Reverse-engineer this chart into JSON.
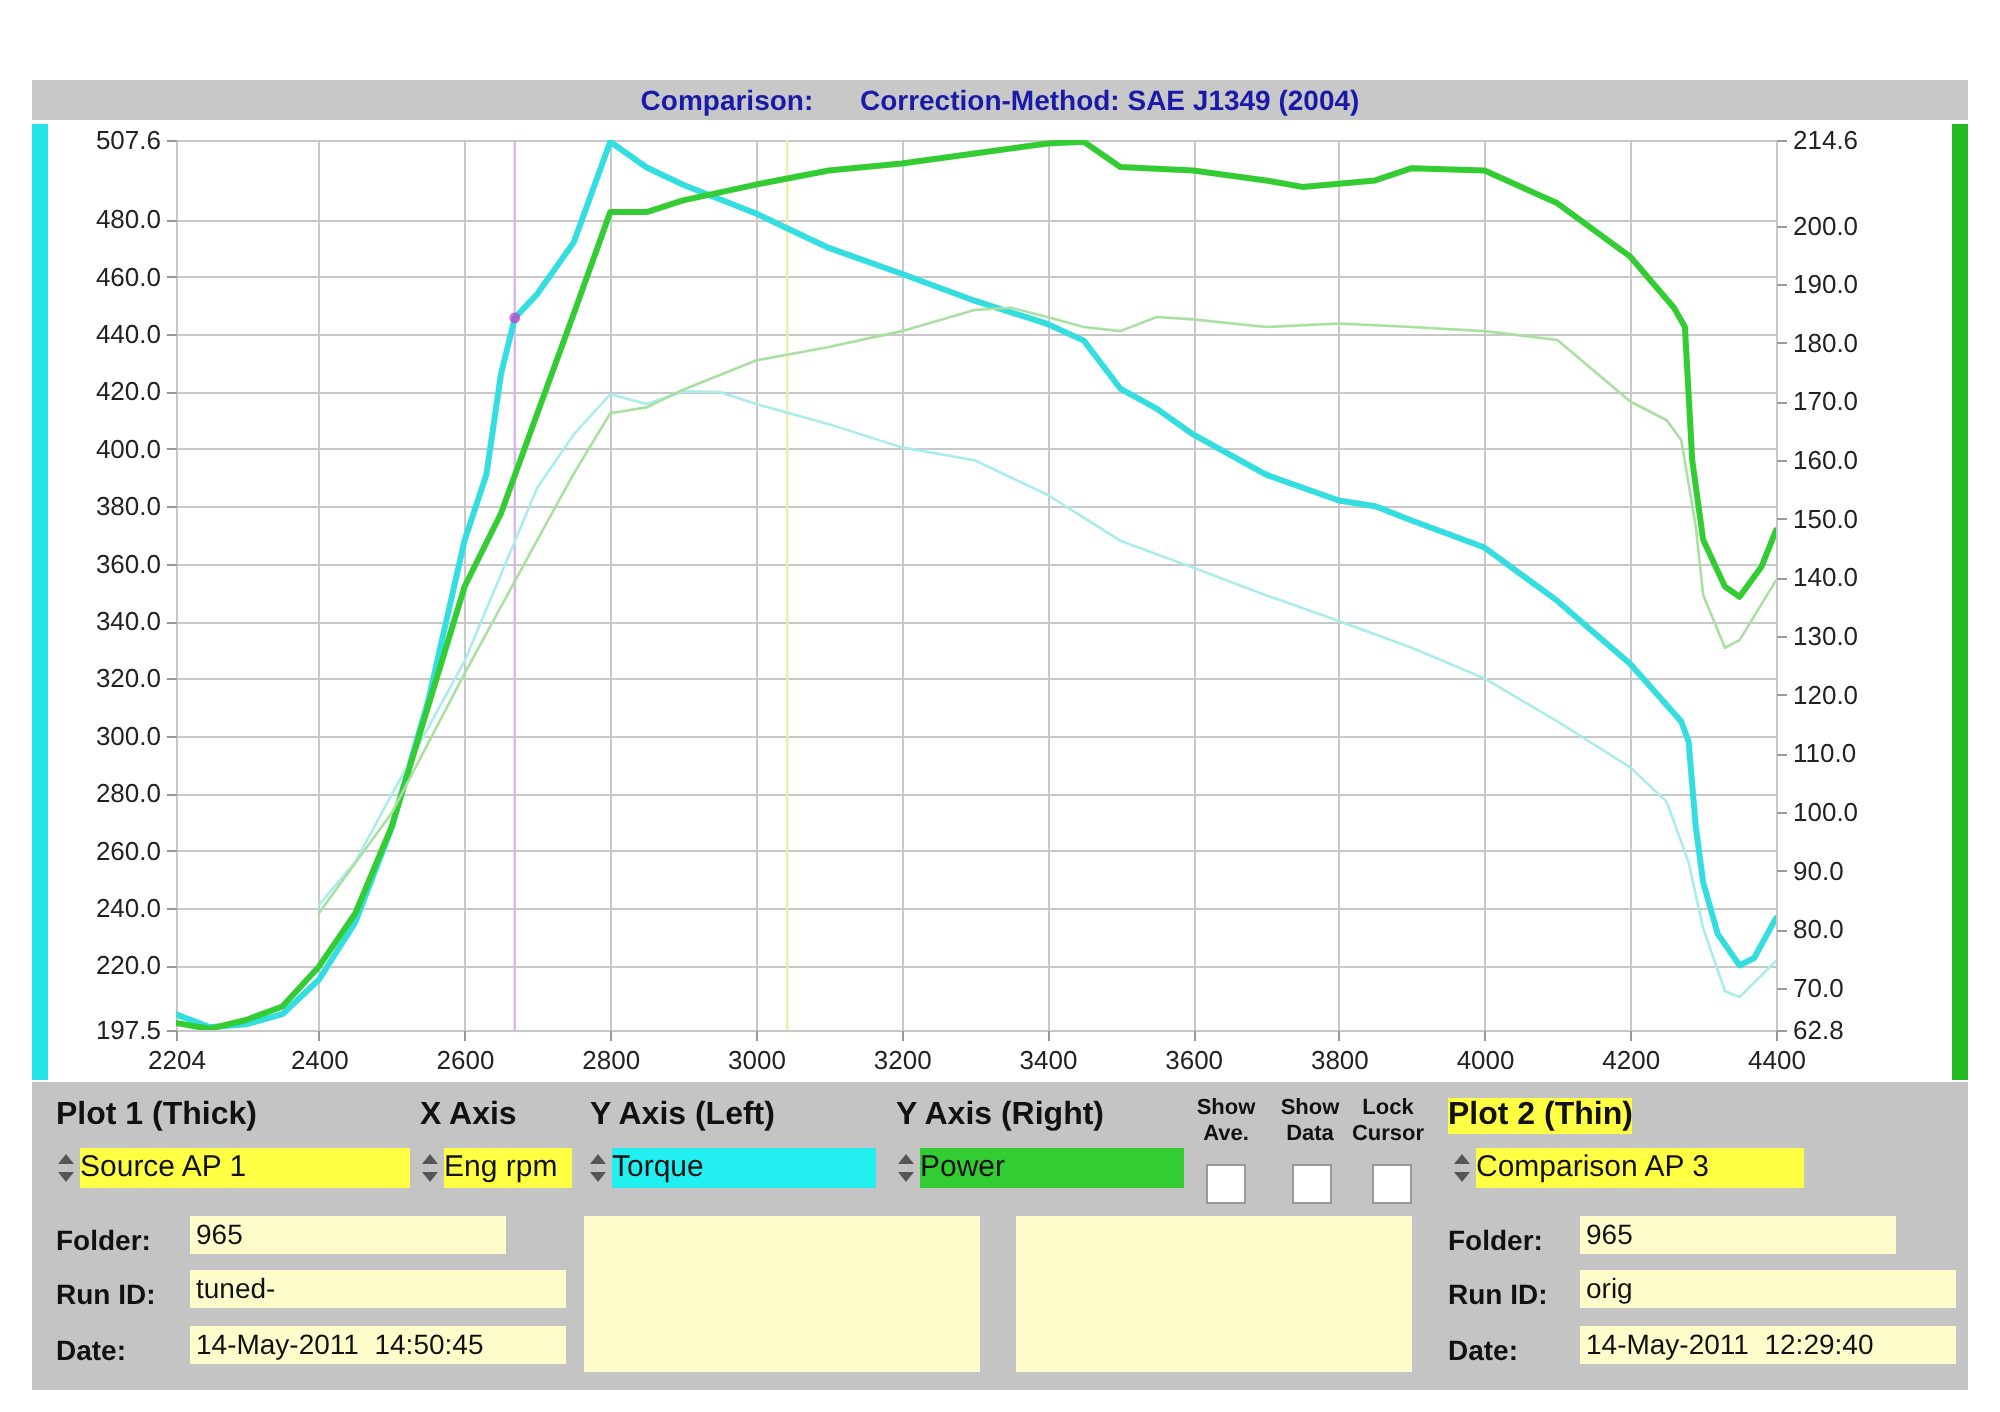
{
  "chart_data": {
    "type": "line",
    "title": "Comparison:",
    "subtitle": "Correction-Method: SAE J1349 (2004)",
    "xlim": [
      2204,
      4400
    ],
    "xticks": [
      2204,
      2400,
      2600,
      2800,
      3000,
      3200,
      3400,
      3600,
      3800,
      4000,
      4200,
      4400
    ],
    "ylim": [
      197.5,
      507.6
    ],
    "yticks": [
      197.5,
      {
        "value": 220,
        "label": "220.0"
      },
      {
        "value": 240,
        "label": "240.0"
      },
      {
        "value": 260,
        "label": "260.0"
      },
      {
        "value": 280,
        "label": "280.0"
      },
      {
        "value": 300,
        "label": "300.0"
      },
      {
        "value": 320,
        "label": "320.0"
      },
      {
        "value": 340,
        "label": "340.0"
      },
      {
        "value": 360,
        "label": "360.0"
      },
      {
        "value": 380,
        "label": "380.0"
      },
      {
        "value": 400,
        "label": "400.0"
      },
      {
        "value": 420,
        "label": "420.0"
      },
      {
        "value": 440,
        "label": "440.0"
      },
      {
        "value": 460,
        "label": "460.0"
      },
      {
        "value": 480,
        "label": "480.0"
      },
      507.6
    ],
    "y2lim": [
      62.8,
      214.6
    ],
    "y2ticks": [
      62.8,
      {
        "value": 70,
        "label": "70.0"
      },
      {
        "value": 80,
        "label": "80.0"
      },
      {
        "value": 90,
        "label": "90.0"
      },
      {
        "value": 100,
        "label": "100.0"
      },
      {
        "value": 110,
        "label": "110.0"
      },
      {
        "value": 120,
        "label": "120.0"
      },
      {
        "value": 130,
        "label": "130.0"
      },
      {
        "value": 140,
        "label": "140.0"
      },
      {
        "value": 150,
        "label": "150.0"
      },
      {
        "value": 160,
        "label": "160.0"
      },
      {
        "value": 170,
        "label": "170.0"
      },
      {
        "value": 180,
        "label": "180.0"
      },
      {
        "value": 190,
        "label": "190.0"
      },
      {
        "value": 200,
        "label": "200.0"
      },
      214.6
    ],
    "grid": true,
    "series": [
      {
        "color": "#33dde0",
        "x": [
          2204,
          2250,
          2300,
          2350,
          2400,
          2450,
          2500,
          2550,
          2600,
          2630,
          2650,
          2669,
          2700,
          2750,
          2800,
          2850,
          2900,
          3000,
          3100,
          3200,
          3300,
          3400,
          3450,
          3500,
          3550,
          3600,
          3700,
          3800,
          3850,
          3900,
          4000,
          4100,
          4200,
          4270,
          4280,
          4290,
          4300,
          4320,
          4350,
          4370,
          4400
        ],
        "values": [
          203,
          198.5,
          199.5,
          203,
          215,
          235,
          268,
          312,
          368,
          391,
          426,
          445.6,
          454,
          472,
          507,
          498,
          492,
          482,
          470,
          461,
          451.6,
          443.5,
          437.7,
          421,
          414,
          405,
          391,
          382,
          380,
          375,
          365.6,
          347,
          325,
          305,
          298,
          268,
          249,
          231,
          220,
          222.6,
          236.5
        ]
      },
      {
        "color": "#33cc33",
        "axis": "y2",
        "x": [
          2204,
          2250,
          2300,
          2350,
          2400,
          2450,
          2500,
          2550,
          2600,
          2650,
          2700,
          2750,
          2800,
          2850,
          2900,
          3000,
          3100,
          3200,
          3300,
          3400,
          3450,
          3500,
          3600,
          3700,
          3750,
          3850,
          3900,
          4000,
          4100,
          4200,
          4260,
          4275,
          4285,
          4300,
          4330,
          4350,
          4380,
          4400
        ],
        "values": [
          64,
          63,
          64.5,
          66.8,
          73.6,
          82.7,
          97.5,
          118,
          138.4,
          150.9,
          168,
          185,
          202.3,
          202.3,
          204.3,
          207,
          209.4,
          210.6,
          212.3,
          214,
          214.3,
          210,
          209.4,
          207.7,
          206.6,
          207.7,
          209.8,
          209.4,
          203.8,
          194.7,
          186,
          182.7,
          160,
          146.4,
          138.4,
          136.7,
          141.8,
          148
        ]
      },
      {
        "color": "#a8ecec",
        "x": [
          2400,
          2450,
          2500,
          2600,
          2700,
          2750,
          2800,
          2850,
          2900,
          2950,
          3000,
          3100,
          3200,
          3300,
          3400,
          3500,
          3600,
          3700,
          3800,
          3900,
          4000,
          4100,
          4200,
          4250,
          4280,
          4300,
          4330,
          4350,
          4400
        ],
        "values": [
          241,
          256,
          279.5,
          326,
          386.5,
          405,
          419,
          415.6,
          420,
          419.8,
          415.6,
          408.6,
          400.5,
          396,
          384,
          368,
          358.6,
          349,
          340,
          330.7,
          320,
          305,
          289,
          277,
          256,
          233,
          211,
          209,
          221.6
        ]
      },
      {
        "color": "#a8e0a0",
        "axis": "y2",
        "x": [
          2400,
          2500,
          2600,
          2700,
          2750,
          2800,
          2850,
          2900,
          3000,
          3100,
          3200,
          3300,
          3350,
          3400,
          3450,
          3500,
          3550,
          3600,
          3700,
          3800,
          3900,
          4000,
          4100,
          4200,
          4250,
          4270,
          4290,
          4300,
          4330,
          4350,
          4400
        ],
        "values": [
          82.7,
          99.8,
          123.6,
          146.4,
          157.7,
          168,
          169,
          172,
          177,
          179.3,
          182,
          185.6,
          186,
          184.4,
          182.7,
          182,
          184.4,
          184,
          182.7,
          183.3,
          182.7,
          182,
          180.5,
          170,
          166.8,
          163.4,
          148.6,
          137,
          128,
          129.3,
          139.5
        ]
      },
      {
        "type": "scatter",
        "marker": "circle",
        "color": "#cc33cc",
        "x": [
          2669
        ],
        "values": [
          445.6
        ]
      }
    ],
    "ref_lines": [
      {
        "axis": "x",
        "value": 2669,
        "color": "#d8b8e8"
      },
      {
        "axis": "x",
        "value": 3043,
        "color": "#eeeea0"
      }
    ],
    "annotations": [
      "Plot 1 (Thick)",
      "X Axis",
      "Y Axis (Left)",
      "Y Axis (Right)",
      "Show Ave.",
      "Show Data",
      "Lock Cursor",
      "Plot 2 (Thin)",
      "Source AP 1",
      "Eng rpm",
      "Torque",
      "Power",
      "Comparison AP 3",
      "Folder:",
      "965",
      "Run ID:",
      "tuned-",
      "Date:",
      "14-May-2011  14:50:45",
      "Folder:",
      "965",
      "Run ID:",
      "orig",
      "Date:",
      "14-May-2011  12:29:40"
    ]
  }
}
